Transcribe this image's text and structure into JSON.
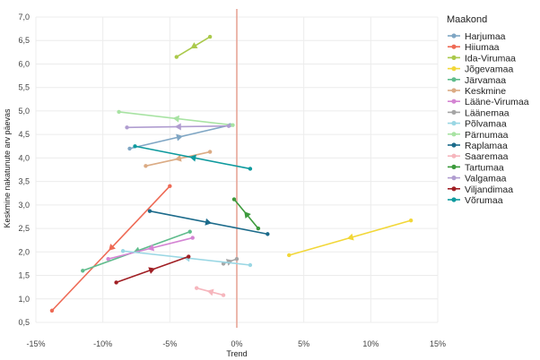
{
  "chart_data": {
    "type": "scatter",
    "title": "",
    "xlabel": "Trend",
    "ylabel": "Keskmine nakatunute arv päevas",
    "xlim": [
      -15,
      15
    ],
    "ylim": [
      0.5,
      7.0
    ],
    "xticks": [
      -15,
      -10,
      -5,
      0,
      5,
      10,
      15
    ],
    "xtick_labels": [
      "-15%",
      "-10%",
      "-5%",
      "0%",
      "5%",
      "10%",
      "15%"
    ],
    "yticks": [
      0.5,
      1.0,
      1.5,
      2.0,
      2.5,
      3.0,
      3.5,
      4.0,
      4.5,
      5.0,
      5.5,
      6.0,
      6.5,
      7.0
    ],
    "ytick_labels": [
      "0,5",
      "1,0",
      "1,5",
      "2,0",
      "2,5",
      "3,0",
      "3,5",
      "4,0",
      "4,5",
      "5,0",
      "5,5",
      "6,0",
      "6,5",
      "7,0"
    ],
    "reference_line_x": 0,
    "reference_line_color": "#e8a598",
    "legend_title": "Maakond",
    "legend_position": "right",
    "series": [
      {
        "name": "Harjumaa",
        "color": "#7fa6c4",
        "start": [
          -8.0,
          4.2
        ],
        "end": [
          -0.5,
          4.7
        ]
      },
      {
        "name": "Hiiumaa",
        "color": "#ee6a55",
        "start": [
          -5.0,
          3.4
        ],
        "end": [
          -13.8,
          0.75
        ]
      },
      {
        "name": "Ida-Virumaa",
        "color": "#aac94b",
        "start": [
          -2.0,
          6.58
        ],
        "end": [
          -4.5,
          6.15
        ]
      },
      {
        "name": "Jõgevamaa",
        "color": "#f2d738",
        "start": [
          13.0,
          2.67
        ],
        "end": [
          3.9,
          1.93
        ]
      },
      {
        "name": "Järvamaa",
        "color": "#5fbc8c",
        "start": [
          -3.5,
          2.43
        ],
        "end": [
          -11.5,
          1.6
        ]
      },
      {
        "name": "Keskmine",
        "color": "#dbab84",
        "start": [
          -2.0,
          4.13
        ],
        "end": [
          -6.8,
          3.83
        ]
      },
      {
        "name": "Lääne-Virumaa",
        "color": "#d484d3",
        "start": [
          -3.3,
          2.3
        ],
        "end": [
          -9.6,
          1.85
        ]
      },
      {
        "name": "Läänemaa",
        "color": "#a5a5a5",
        "start": [
          -1.0,
          1.75
        ],
        "end": [
          0.0,
          1.85
        ]
      },
      {
        "name": "Põlvamaa",
        "color": "#9ad7e4",
        "start": [
          1.0,
          1.72
        ],
        "end": [
          -8.5,
          2.02
        ]
      },
      {
        "name": "Pärnumaa",
        "color": "#a8e3a3",
        "start": [
          -0.3,
          4.7
        ],
        "end": [
          -8.8,
          4.98
        ]
      },
      {
        "name": "Raplamaa",
        "color": "#1c6b8b",
        "start": [
          -6.5,
          2.87
        ],
        "end": [
          2.3,
          2.38
        ]
      },
      {
        "name": "Saaremaa",
        "color": "#f6b6bd",
        "start": [
          -1.0,
          1.08
        ],
        "end": [
          -3.0,
          1.23
        ]
      },
      {
        "name": "Tartumaa",
        "color": "#3c9a3c",
        "start": [
          1.6,
          2.5
        ],
        "end": [
          -0.2,
          3.12
        ]
      },
      {
        "name": "Valgamaa",
        "color": "#b09dd0",
        "start": [
          -0.6,
          4.68
        ],
        "end": [
          -8.2,
          4.65
        ]
      },
      {
        "name": "Viljandimaa",
        "color": "#a01f24",
        "start": [
          -9.0,
          1.35
        ],
        "end": [
          -3.6,
          1.9
        ]
      },
      {
        "name": "Võrumaa",
        "color": "#0f9a9e",
        "start": [
          1.0,
          3.77
        ],
        "end": [
          -7.6,
          4.25
        ]
      }
    ]
  }
}
